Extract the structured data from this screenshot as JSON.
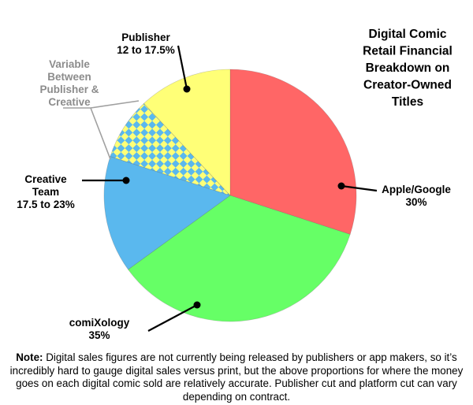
{
  "chart_data": {
    "type": "pie",
    "title": [
      "Digital Comic",
      "Retail Financial",
      "Breakdown on",
      "Creator-Owned",
      "Titles"
    ],
    "slices": [
      {
        "label": [
          "Apple/Google",
          "30%"
        ],
        "value": 30,
        "color": "#ff6666"
      },
      {
        "label": [
          "comiXology",
          "35%"
        ],
        "value": 35,
        "color": "#66ff66"
      },
      {
        "label": [
          "Creative",
          "Team",
          "17.5 to 23%"
        ],
        "value": 15,
        "color": "#5ab8ee"
      },
      {
        "label": [
          "Variable",
          "Between",
          "Publisher &",
          "Creative"
        ],
        "value": 8,
        "color": "#5ab8ee",
        "pattern_color": "#ffff77",
        "pattern": "checkered"
      },
      {
        "label": [
          "Publisher",
          "12 to 17.5%"
        ],
        "value": 12,
        "color": "#ffff77"
      }
    ]
  },
  "note": {
    "label": "Note:",
    "text": " Digital sales figures are not currently being released by publishers or app makers, so it’s incredibly hard to gauge digital sales versus print, but the above proportions for where the money goes on each digital comic sold are relatively accurate. Publisher cut and platform cut can vary depending on contract."
  }
}
